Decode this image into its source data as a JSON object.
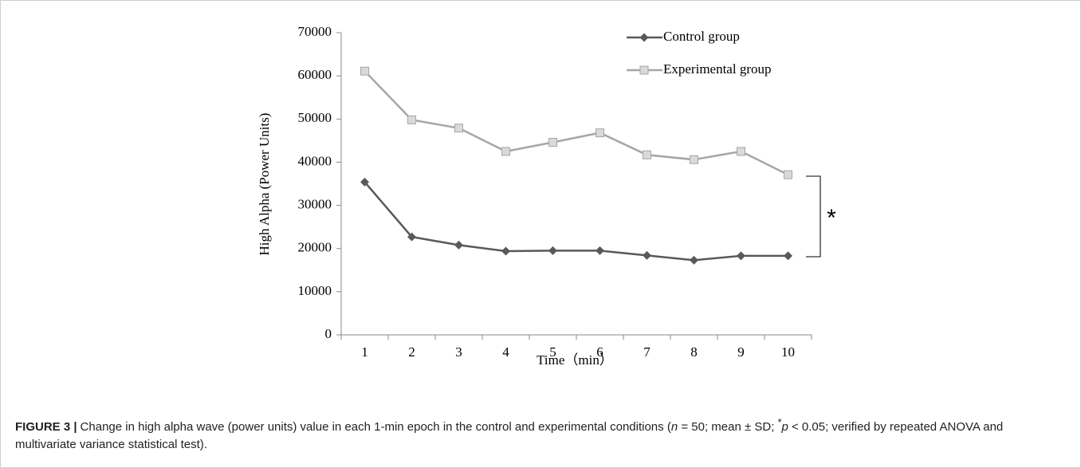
{
  "chart_data": {
    "type": "line",
    "categories": [
      "1",
      "2",
      "3",
      "4",
      "5",
      "6",
      "7",
      "8",
      "9",
      "10"
    ],
    "series": [
      {
        "name": "Control group",
        "color": "#595959",
        "marker": "diamond",
        "values": [
          35400,
          22700,
          20800,
          19400,
          19500,
          19500,
          18400,
          17300,
          18300,
          18300
        ]
      },
      {
        "name": "Experimental group",
        "color": "#a6a6a6",
        "marker": "square",
        "values": [
          61100,
          49800,
          47900,
          42500,
          44600,
          46800,
          41700,
          40600,
          42500,
          37100
        ]
      }
    ],
    "ylim": [
      0,
      70000
    ],
    "yticks": [
      0,
      10000,
      20000,
      30000,
      40000,
      50000,
      60000,
      70000
    ],
    "xlabel": "Time（min）",
    "ylabel": "High Alpha (Power Units)",
    "annotation": "*",
    "legend": "upper right",
    "caption_label": "FIGURE 3 |",
    "caption_parts": [
      "Change in high alpha wave (power units) value in each 1-min epoch in the control and experimental conditions (",
      "n",
      " = 50; mean ± SD; ",
      "*",
      "p",
      " < 0.05; verified by repeated ANOVA and multivariate variance statistical test)."
    ]
  }
}
